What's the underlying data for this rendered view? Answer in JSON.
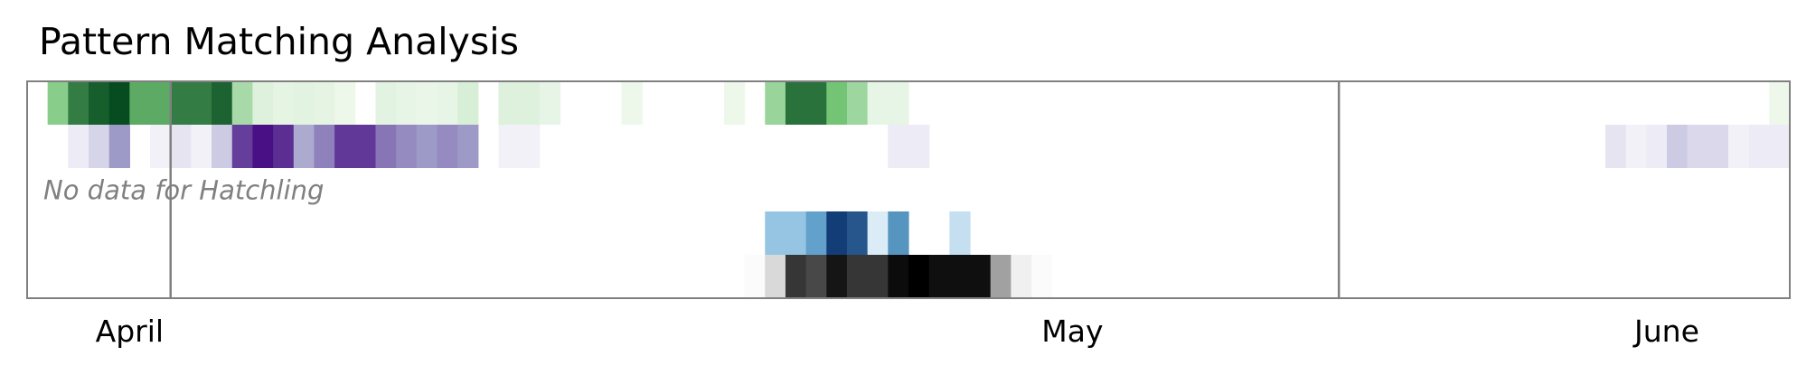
{
  "chart_data": {
    "type": "heatmap",
    "title": "Pattern Matching Analysis",
    "x_range": [
      "2022-03-29",
      "2022-06-23"
    ],
    "month_labels": [
      {
        "label": "April",
        "center": "2022-04-03"
      },
      {
        "label": "May",
        "center": "2022-05-19"
      },
      {
        "label": "June",
        "center": "2022-06-17"
      }
    ],
    "dividers": [
      "2022-04-05",
      "2022-06-01"
    ],
    "rows": [
      {
        "colormap": "greens",
        "values": [
          [
            "2022-03-30",
            0.42
          ],
          [
            "2022-03-31",
            0.78
          ],
          [
            "2022-04-01",
            0.9
          ],
          [
            "2022-04-02",
            0.97
          ],
          [
            "2022-04-03",
            0.6
          ],
          [
            "2022-04-04",
            0.6
          ],
          [
            "2022-04-05",
            0.78
          ],
          [
            "2022-04-06",
            0.78
          ],
          [
            "2022-04-07",
            0.88
          ],
          [
            "2022-04-08",
            0.3
          ],
          [
            "2022-04-09",
            0.1
          ],
          [
            "2022-04-10",
            0.07
          ],
          [
            "2022-04-11",
            0.08
          ],
          [
            "2022-04-12",
            0.07
          ],
          [
            "2022-04-13",
            0.04
          ],
          [
            "2022-04-15",
            0.08
          ],
          [
            "2022-04-16",
            0.06
          ],
          [
            "2022-04-17",
            0.05
          ],
          [
            "2022-04-18",
            0.06
          ],
          [
            "2022-04-19",
            0.12
          ],
          [
            "2022-04-21",
            0.1
          ],
          [
            "2022-04-22",
            0.1
          ],
          [
            "2022-04-23",
            0.06
          ],
          [
            "2022-04-27",
            0.04
          ],
          [
            "2022-05-02",
            0.04
          ],
          [
            "2022-05-04",
            0.36
          ],
          [
            "2022-05-05",
            0.82
          ],
          [
            "2022-05-06",
            0.82
          ],
          [
            "2022-05-07",
            0.5
          ],
          [
            "2022-05-08",
            0.34
          ],
          [
            "2022-05-09",
            0.06
          ],
          [
            "2022-05-10",
            0.06
          ],
          [
            "2022-06-22",
            0.04
          ]
        ]
      },
      {
        "colormap": "purples",
        "values": [
          [
            "2022-03-31",
            0.08
          ],
          [
            "2022-04-01",
            0.2
          ],
          [
            "2022-04-02",
            0.5
          ],
          [
            "2022-04-04",
            0.05
          ],
          [
            "2022-04-05",
            0.12
          ],
          [
            "2022-04-06",
            0.05
          ],
          [
            "2022-04-07",
            0.25
          ],
          [
            "2022-04-08",
            0.8
          ],
          [
            "2022-04-09",
            0.95
          ],
          [
            "2022-04-10",
            0.85
          ],
          [
            "2022-04-11",
            0.42
          ],
          [
            "2022-04-12",
            0.58
          ],
          [
            "2022-04-13",
            0.82
          ],
          [
            "2022-04-14",
            0.82
          ],
          [
            "2022-04-15",
            0.62
          ],
          [
            "2022-04-16",
            0.55
          ],
          [
            "2022-04-17",
            0.5
          ],
          [
            "2022-04-18",
            0.55
          ],
          [
            "2022-04-19",
            0.5
          ],
          [
            "2022-04-21",
            0.05
          ],
          [
            "2022-04-22",
            0.05
          ],
          [
            "2022-05-10",
            0.08
          ],
          [
            "2022-05-11",
            0.08
          ],
          [
            "2022-06-14",
            0.12
          ],
          [
            "2022-06-15",
            0.05
          ],
          [
            "2022-06-16",
            0.08
          ],
          [
            "2022-06-17",
            0.25
          ],
          [
            "2022-06-18",
            0.18
          ],
          [
            "2022-06-19",
            0.18
          ],
          [
            "2022-06-20",
            0.05
          ],
          [
            "2022-06-21",
            0.08
          ],
          [
            "2022-06-22",
            0.08
          ]
        ]
      },
      {
        "colormap": "none",
        "no_data_label": "No data for Hatchling",
        "values": []
      },
      {
        "colormap": "blues",
        "values": [
          [
            "2022-05-04",
            0.35
          ],
          [
            "2022-05-05",
            0.35
          ],
          [
            "2022-05-06",
            0.55
          ],
          [
            "2022-05-07",
            0.95
          ],
          [
            "2022-05-08",
            0.85
          ],
          [
            "2022-05-09",
            0.1
          ],
          [
            "2022-05-10",
            0.6
          ],
          [
            "2022-05-13",
            0.18
          ]
        ]
      },
      {
        "colormap": "greys",
        "values": [
          [
            "2022-05-03",
            0.02
          ],
          [
            "2022-05-04",
            0.18
          ],
          [
            "2022-05-05",
            0.82
          ],
          [
            "2022-05-06",
            0.76
          ],
          [
            "2022-05-07",
            0.93
          ],
          [
            "2022-05-08",
            0.82
          ],
          [
            "2022-05-09",
            0.82
          ],
          [
            "2022-05-10",
            0.96
          ],
          [
            "2022-05-11",
            1.0
          ],
          [
            "2022-05-12",
            0.95
          ],
          [
            "2022-05-13",
            0.95
          ],
          [
            "2022-05-14",
            0.95
          ],
          [
            "2022-05-15",
            0.45
          ],
          [
            "2022-05-16",
            0.07
          ],
          [
            "2022-05-17",
            0.02
          ]
        ]
      }
    ]
  }
}
